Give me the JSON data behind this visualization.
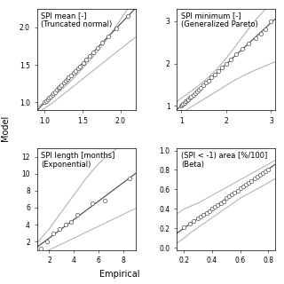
{
  "panel1": {
    "title": "SPI mean [-]",
    "subtitle": "(Truncated normal)",
    "xlim": [
      0.9,
      2.2
    ],
    "ylim": [
      0.9,
      2.25
    ],
    "xticks": [
      1.0,
      1.5,
      2.0
    ],
    "yticks": [
      1.0,
      1.5,
      2.0
    ],
    "emp": [
      1.0,
      1.02,
      1.04,
      1.06,
      1.08,
      1.1,
      1.12,
      1.14,
      1.16,
      1.18,
      1.2,
      1.22,
      1.25,
      1.28,
      1.3,
      1.32,
      1.35,
      1.38,
      1.41,
      1.44,
      1.47,
      1.51,
      1.55,
      1.59,
      1.64,
      1.7,
      1.76,
      1.84,
      1.95,
      2.1
    ],
    "mod": [
      1.0,
      1.02,
      1.04,
      1.06,
      1.08,
      1.1,
      1.12,
      1.14,
      1.17,
      1.19,
      1.21,
      1.23,
      1.26,
      1.29,
      1.31,
      1.33,
      1.36,
      1.39,
      1.42,
      1.45,
      1.48,
      1.53,
      1.57,
      1.62,
      1.67,
      1.73,
      1.8,
      1.88,
      1.99,
      2.15
    ],
    "ci_x": [
      0.9,
      1.0,
      1.1,
      1.2,
      1.3,
      1.4,
      1.5,
      1.6,
      1.7,
      1.8,
      1.9,
      2.0,
      2.1,
      2.2
    ],
    "ci_lo": [
      0.86,
      0.92,
      0.99,
      1.07,
      1.15,
      1.23,
      1.31,
      1.39,
      1.47,
      1.55,
      1.63,
      1.71,
      1.79,
      1.87
    ],
    "ci_hi": [
      0.94,
      1.0,
      1.07,
      1.15,
      1.24,
      1.34,
      1.45,
      1.56,
      1.68,
      1.81,
      1.95,
      2.1,
      2.25,
      2.4
    ]
  },
  "panel2": {
    "title": "SPI minimum [-]",
    "subtitle": "(Generalized Pareto)",
    "xlim": [
      0.9,
      3.1
    ],
    "ylim": [
      0.9,
      3.3
    ],
    "xticks": [
      1,
      2,
      3
    ],
    "yticks": [
      1,
      2,
      3
    ],
    "emp": [
      1.0,
      1.02,
      1.04,
      1.07,
      1.1,
      1.13,
      1.16,
      1.19,
      1.22,
      1.26,
      1.3,
      1.34,
      1.38,
      1.43,
      1.48,
      1.54,
      1.6,
      1.67,
      1.74,
      1.82,
      1.91,
      2.0,
      2.11,
      2.22,
      2.35,
      2.5,
      2.65,
      2.78,
      2.88,
      3.0
    ],
    "mod": [
      1.0,
      1.02,
      1.04,
      1.07,
      1.1,
      1.13,
      1.16,
      1.19,
      1.22,
      1.26,
      1.3,
      1.34,
      1.38,
      1.43,
      1.48,
      1.54,
      1.6,
      1.67,
      1.74,
      1.82,
      1.91,
      2.0,
      2.1,
      2.22,
      2.35,
      2.48,
      2.6,
      2.7,
      2.8,
      3.0
    ],
    "ci_x": [
      0.9,
      1.0,
      1.2,
      1.4,
      1.6,
      1.8,
      2.0,
      2.2,
      2.4,
      2.6,
      2.8,
      3.0,
      3.1
    ],
    "ci_lo": [
      0.7,
      0.82,
      0.96,
      1.09,
      1.22,
      1.35,
      1.48,
      1.61,
      1.72,
      1.82,
      1.91,
      2.0,
      2.04
    ],
    "ci_hi": [
      1.1,
      1.18,
      1.33,
      1.49,
      1.67,
      1.88,
      2.12,
      2.4,
      2.68,
      2.96,
      3.2,
      3.4,
      3.5
    ]
  },
  "panel3": {
    "title": "SPI length [months]",
    "subtitle": "(Exponential)",
    "xlim": [
      1.0,
      9.0
    ],
    "ylim": [
      1.0,
      13.0
    ],
    "xticks": [
      2,
      4,
      6,
      8
    ],
    "yticks": [
      2,
      4,
      6,
      8,
      10,
      12
    ],
    "emp": [
      1.3,
      1.8,
      2.3,
      2.8,
      3.3,
      3.8,
      4.3,
      5.5,
      6.5,
      8.5
    ],
    "mod": [
      1.2,
      2.0,
      3.0,
      3.5,
      4.0,
      4.3,
      5.2,
      6.5,
      6.8,
      9.5
    ],
    "ci_x": [
      1.0,
      2.0,
      3.0,
      4.0,
      5.0,
      6.0,
      7.0,
      8.0,
      9.0
    ],
    "ci_lo": [
      0.5,
      1.0,
      1.7,
      2.4,
      3.1,
      3.8,
      4.5,
      5.2,
      5.9
    ],
    "ci_hi": [
      1.8,
      3.5,
      5.5,
      7.5,
      9.5,
      11.2,
      12.5,
      13.5,
      14.5
    ]
  },
  "panel4": {
    "title": "(SPI < -1) area [%/100]",
    "subtitle": "(Beta)",
    "xlim": [
      0.15,
      0.85
    ],
    "ylim": [
      -0.02,
      1.02
    ],
    "xticks": [
      0.2,
      0.4,
      0.6,
      0.8
    ],
    "yticks": [
      0.0,
      0.2,
      0.4,
      0.6,
      0.8,
      1.0
    ],
    "emp": [
      0.2,
      0.24,
      0.27,
      0.3,
      0.32,
      0.34,
      0.36,
      0.38,
      0.4,
      0.42,
      0.44,
      0.46,
      0.48,
      0.5,
      0.52,
      0.54,
      0.56,
      0.58,
      0.6,
      0.62,
      0.64,
      0.66,
      0.68,
      0.7,
      0.72,
      0.74,
      0.76,
      0.78,
      0.8
    ],
    "mod": [
      0.21,
      0.25,
      0.28,
      0.3,
      0.32,
      0.34,
      0.36,
      0.38,
      0.4,
      0.42,
      0.44,
      0.46,
      0.48,
      0.51,
      0.53,
      0.55,
      0.57,
      0.59,
      0.61,
      0.63,
      0.65,
      0.67,
      0.69,
      0.71,
      0.73,
      0.75,
      0.77,
      0.79,
      0.8
    ],
    "ci_x": [
      0.15,
      0.2,
      0.25,
      0.3,
      0.35,
      0.4,
      0.45,
      0.5,
      0.55,
      0.6,
      0.65,
      0.7,
      0.75,
      0.8,
      0.85
    ],
    "ci_lo": [
      0.05,
      0.1,
      0.16,
      0.21,
      0.26,
      0.31,
      0.36,
      0.41,
      0.46,
      0.51,
      0.55,
      0.59,
      0.63,
      0.67,
      0.71
    ],
    "ci_hi": [
      0.35,
      0.4,
      0.43,
      0.46,
      0.5,
      0.54,
      0.58,
      0.62,
      0.66,
      0.7,
      0.74,
      0.78,
      0.82,
      0.86,
      0.9
    ]
  },
  "ylabel": "Model",
  "xlabel": "Empirical",
  "line_color": "#444444",
  "ci_color": "#aaaaaa",
  "marker_facecolor": "white",
  "marker_edgecolor": "#555555",
  "bg_color": "white",
  "fontsize_title": 6.0,
  "fontsize_label": 7.0,
  "fontsize_tick": 5.5
}
